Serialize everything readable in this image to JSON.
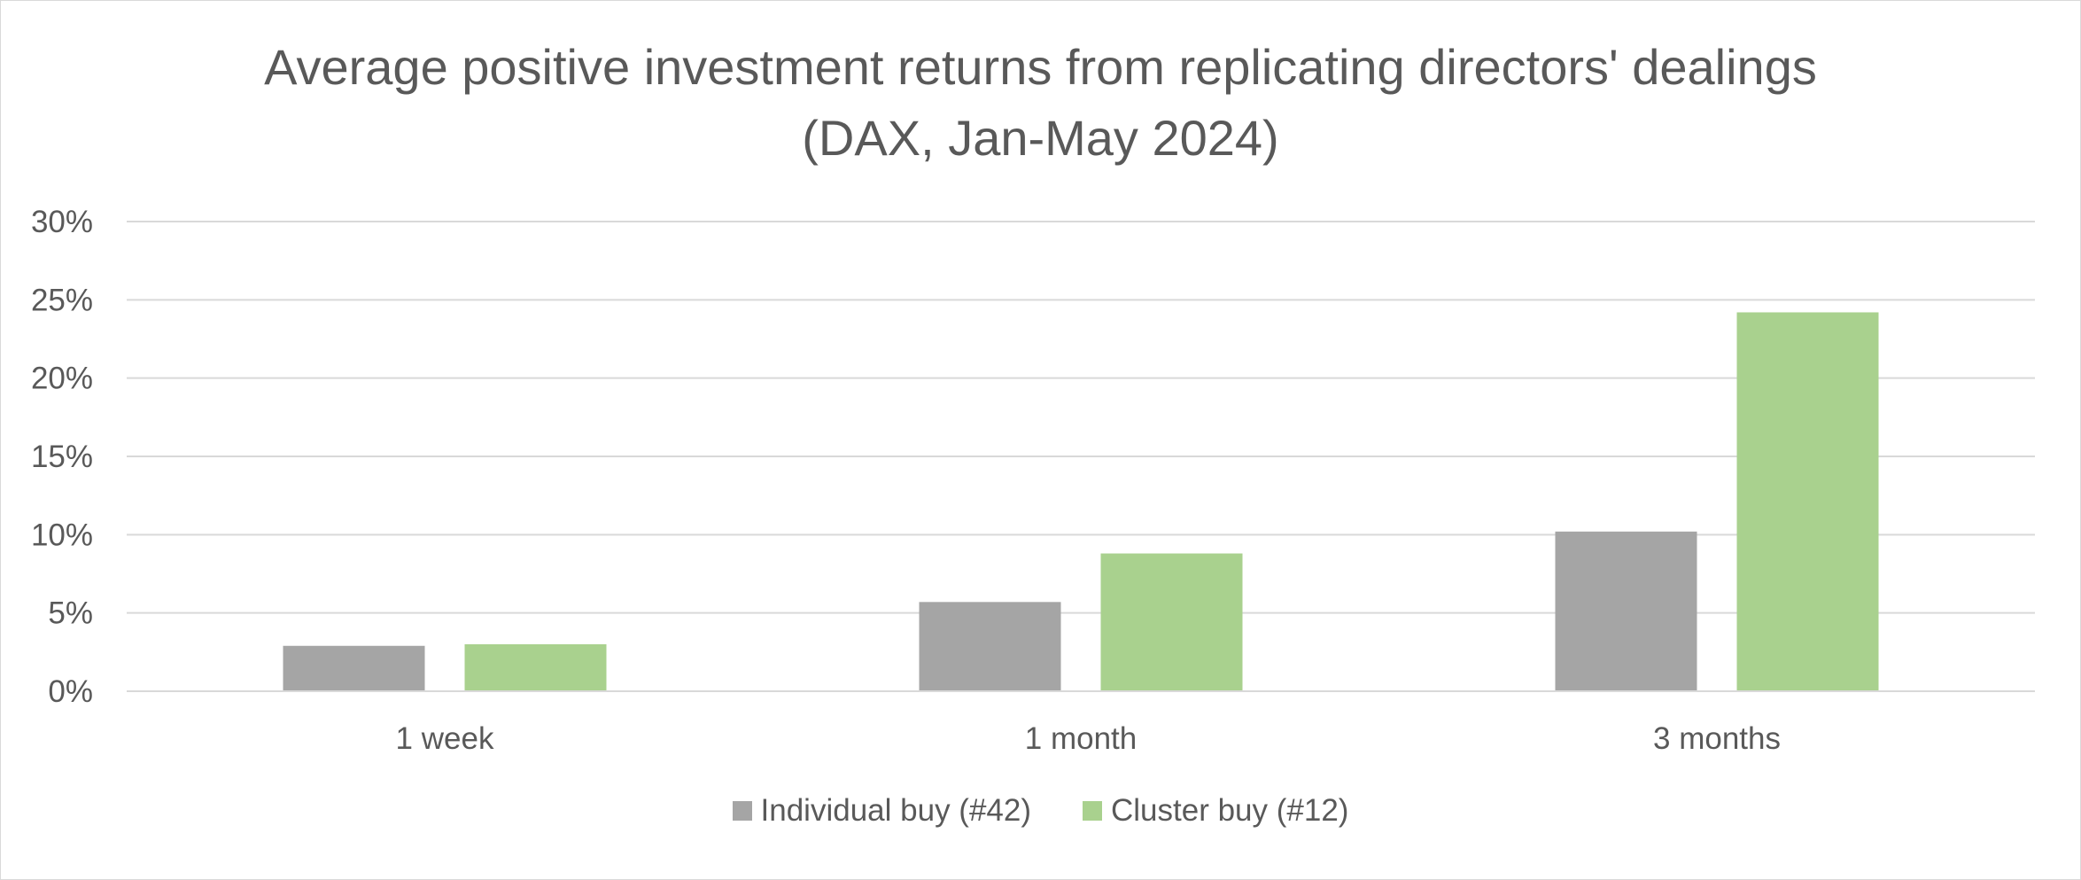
{
  "chart_data": {
    "type": "bar",
    "title": "Average positive investment returns from replicating directors' dealings",
    "subtitle": "(DAX, Jan-May 2024)",
    "categories": [
      "1 week",
      "1 month",
      "3 months"
    ],
    "series": [
      {
        "name": "Individual buy (#42)",
        "color": "#a5a5a5",
        "values": [
          2.9,
          5.7,
          10.2
        ]
      },
      {
        "name": "Cluster buy (#12)",
        "color": "#a9d18e",
        "values": [
          3.0,
          8.8,
          24.2
        ]
      }
    ],
    "ylim": [
      0,
      30
    ],
    "yticks": [
      0,
      5,
      10,
      15,
      20,
      25,
      30
    ],
    "ytick_labels": [
      "0%",
      "5%",
      "10%",
      "15%",
      "20%",
      "25%",
      "30%"
    ],
    "xlabel": "",
    "ylabel": "",
    "grid": true,
    "legend_position": "bottom"
  }
}
